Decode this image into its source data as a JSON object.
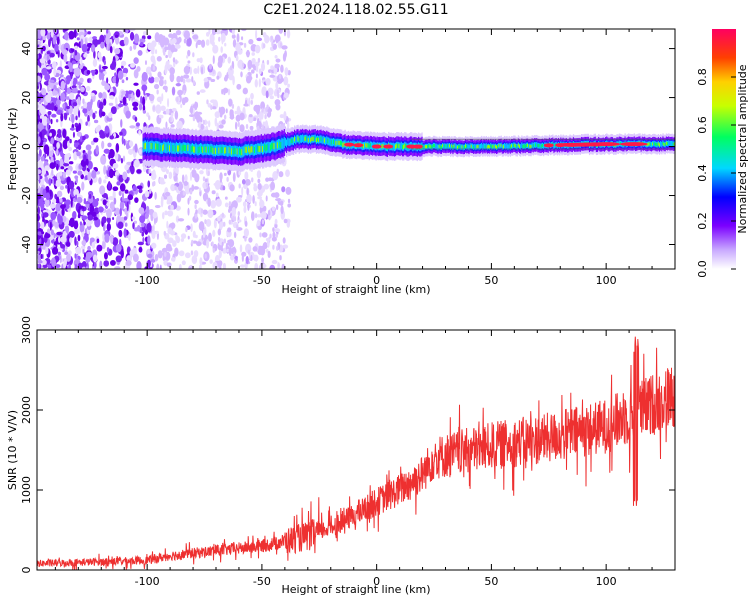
{
  "title": "C2E1.2024.118.02.55.G11",
  "chart_data": [
    {
      "type": "heatmap",
      "xlabel": "Height of straight line (km)",
      "ylabel": "Frequency (Hz)",
      "xlim": [
        -148,
        130
      ],
      "ylim": [
        -50,
        48
      ],
      "xticks": [
        -100,
        -50,
        0,
        50,
        100
      ],
      "yticks": [
        -40,
        -20,
        0,
        20,
        40
      ],
      "grid": false,
      "colorbar": {
        "label": "Normalized spectral amplitude",
        "range": [
          0.0,
          1.0
        ],
        "ticks": [
          "0.0",
          "0.2",
          "0.4",
          "0.6",
          "0.8"
        ],
        "colors": [
          "#ffffff",
          "#c8a8ff",
          "#7b00ff",
          "#0000ff",
          "#00d8ff",
          "#00ff60",
          "#c8ff00",
          "#ffd000",
          "#ff4000",
          "#ff0060"
        ]
      },
      "ridge": [
        {
          "x": -100,
          "y": 0
        },
        {
          "x": -80,
          "y": -1
        },
        {
          "x": -60,
          "y": -2
        },
        {
          "x": -45,
          "y": 0
        },
        {
          "x": -35,
          "y": 3
        },
        {
          "x": -25,
          "y": 3
        },
        {
          "x": -15,
          "y": 1
        },
        {
          "x": 0,
          "y": 0
        },
        {
          "x": 50,
          "y": 0
        },
        {
          "x": 100,
          "y": 1
        },
        {
          "x": 130,
          "y": 1
        }
      ]
    },
    {
      "type": "line",
      "xlabel": "Height of straight line (km)",
      "ylabel": "SNR (10 * V/V)",
      "xlim": [
        -148,
        130
      ],
      "ylim": [
        0,
        3000
      ],
      "xticks": [
        -100,
        -50,
        0,
        50,
        100
      ],
      "yticks": [
        0,
        1000,
        2000,
        3000
      ],
      "grid": false,
      "color": "#ee3030",
      "trend": [
        {
          "x": -148,
          "y": 80
        },
        {
          "x": -100,
          "y": 120
        },
        {
          "x": -90,
          "y": 180
        },
        {
          "x": -70,
          "y": 240
        },
        {
          "x": -50,
          "y": 300
        },
        {
          "x": -30,
          "y": 420
        },
        {
          "x": -15,
          "y": 600
        },
        {
          "x": 0,
          "y": 850
        },
        {
          "x": 10,
          "y": 1000
        },
        {
          "x": 20,
          "y": 1200
        },
        {
          "x": 25,
          "y": 1400
        },
        {
          "x": 50,
          "y": 1550
        },
        {
          "x": 75,
          "y": 1650
        },
        {
          "x": 100,
          "y": 1800
        },
        {
          "x": 115,
          "y": 2000
        },
        {
          "x": 130,
          "y": 2200
        }
      ],
      "spike": {
        "x": 113,
        "y_min": 750,
        "y_max": 3000
      }
    }
  ]
}
